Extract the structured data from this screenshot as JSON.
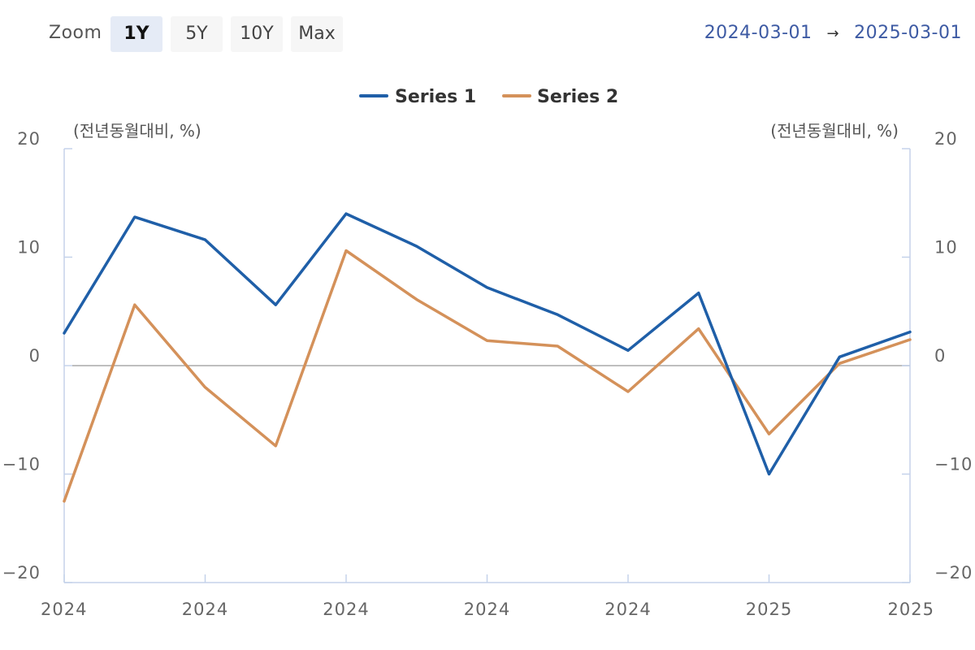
{
  "toolbar": {
    "zoom_label": "Zoom",
    "zoom_buttons": [
      "1Y",
      "5Y",
      "10Y",
      "Max"
    ],
    "active_zoom": "1Y"
  },
  "range": {
    "from": "2024-03-01",
    "arrow": "→",
    "to": "2025-03-01"
  },
  "colors": {
    "series1": "#1f5fa8",
    "series2": "#d4915a",
    "axis": "#c5d2ea",
    "zero_line": "#aaaaaa",
    "tick_text": "#666666",
    "range_text": "#3d5aa3"
  },
  "chart_data": {
    "type": "line",
    "left_axis_title": "(전년동월대비, %)",
    "right_axis_title": "(전년동월대비, %)",
    "ylim": [
      -20,
      20
    ],
    "yticks": [
      -20,
      -10,
      0,
      10,
      20
    ],
    "ytick_labels": [
      "−20",
      "−10",
      "0",
      "10",
      "20"
    ],
    "x_tick_labels": [
      "2024",
      "2024",
      "2024",
      "2024",
      "2024",
      "2025",
      "2025"
    ],
    "legend_position": "top-center",
    "series": [
      {
        "name": "Series 1",
        "values": [
          3.0,
          13.7,
          11.6,
          5.6,
          14.0,
          11.0,
          7.2,
          4.7,
          1.4,
          6.7,
          -10.0,
          0.8,
          3.1
        ]
      },
      {
        "name": "Series 2",
        "values": [
          -12.5,
          5.6,
          -2.0,
          -7.4,
          10.6,
          6.1,
          2.3,
          1.8,
          -2.4,
          3.4,
          -6.3,
          0.2,
          2.4
        ]
      }
    ]
  }
}
